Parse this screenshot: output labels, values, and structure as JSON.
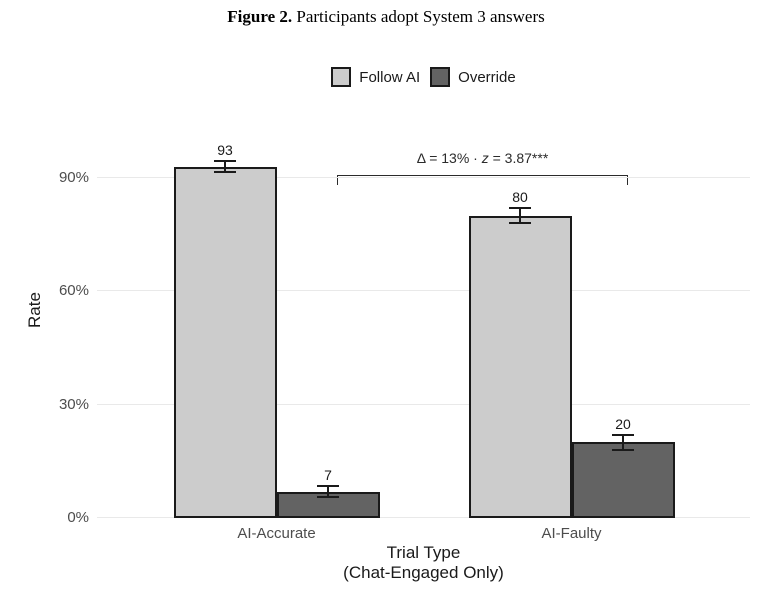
{
  "figure": {
    "title_prefix": "Figure 2.",
    "title_text": " Participants adopt System 3 answers"
  },
  "chart_data": {
    "type": "bar",
    "title": "Figure 2. Participants adopt System 3 answers",
    "categories": [
      "AI-Accurate",
      "AI-Faulty"
    ],
    "series": [
      {
        "name": "Follow AI",
        "color": "#cccccc",
        "values": [
          93,
          80
        ],
        "errors": [
          1.5,
          2
        ]
      },
      {
        "name": "Override",
        "color": "#636363",
        "values": [
          7,
          20
        ],
        "errors": [
          1.5,
          2
        ]
      }
    ],
    "xlabel": "Trial Type",
    "xlabel_note": "(Chat-Engaged Only)",
    "ylabel": "Rate",
    "ylim": [
      0,
      100
    ],
    "yticks": [
      {
        "value": 0,
        "label": "0%"
      },
      {
        "value": 30,
        "label": "30%"
      },
      {
        "value": 60,
        "label": "60%"
      },
      {
        "value": 90,
        "label": "90%"
      }
    ],
    "grid": "horizontal-only",
    "legend_position": "top-center",
    "bar_border_color": "#1a1a1a",
    "annotation": {
      "text": "Δ = 13% · z = 3.87***",
      "pre": "Δ = 13% · ",
      "stat": "z",
      "post": " = 3.87***"
    }
  }
}
